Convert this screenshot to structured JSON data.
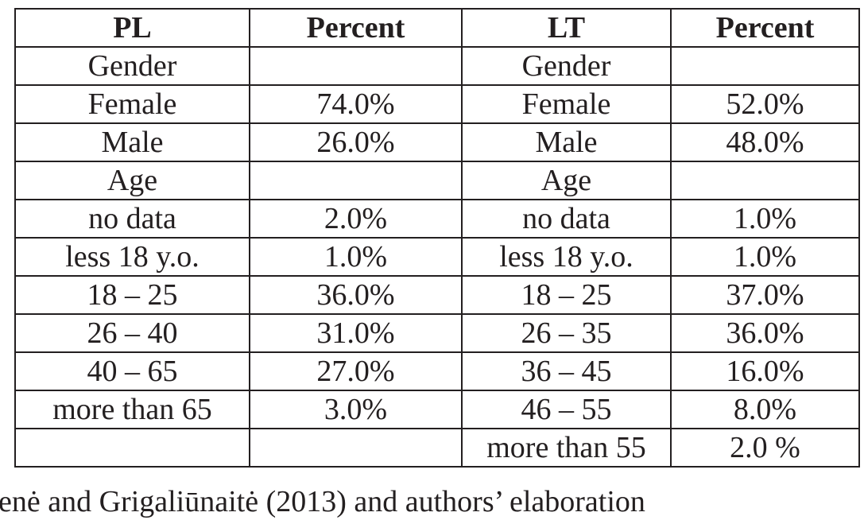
{
  "table": {
    "header": [
      "PL",
      "Percent",
      "LT",
      "Percent"
    ],
    "rows": [
      [
        "Gender",
        null,
        "Gender",
        null
      ],
      [
        "Female",
        "74.0%",
        "Female",
        "52.0%"
      ],
      [
        "Male",
        "26.0%",
        "Male",
        "48.0%"
      ],
      [
        "Age",
        null,
        "Age",
        null
      ],
      [
        "no data",
        "2.0%",
        "no data",
        "1.0%"
      ],
      [
        "less 18 y.o.",
        "1.0%",
        "less 18 y.o.",
        "1.0%"
      ],
      [
        "18 – 25",
        "36.0%",
        "18 – 25",
        "37.0%"
      ],
      [
        "26 – 40",
        "31.0%",
        "26 – 35",
        "36.0%"
      ],
      [
        "40 – 65",
        "27.0%",
        "36 – 45",
        "16.0%"
      ],
      [
        "more than 65",
        "3.0%",
        "46 – 55",
        "8.0%"
      ],
      [
        null,
        null,
        "more than 55",
        "2.0 %"
      ]
    ]
  },
  "source": "enė and Grigaliūnaitė (2013) and authors’ elaboration"
}
